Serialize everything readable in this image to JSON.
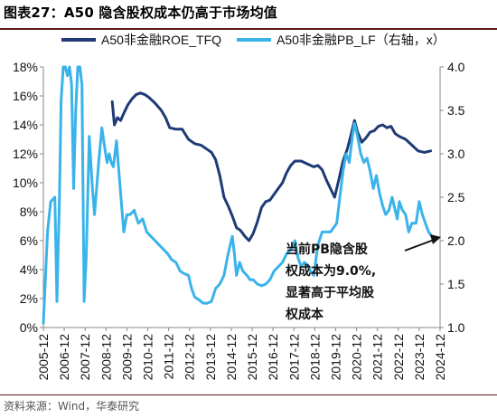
{
  "title": {
    "label": "图表27：",
    "text": "A50 隐含股权成本仍高于市场均值"
  },
  "source": "资料来源：Wind，华泰研究",
  "chart_data": {
    "type": "line",
    "x_ticks": [
      "2005-12",
      "2006-12",
      "2007-12",
      "2008-12",
      "2009-12",
      "2010-12",
      "2011-12",
      "2012-12",
      "2013-12",
      "2014-12",
      "2015-12",
      "2016-12",
      "2017-12",
      "2018-12",
      "2019-12",
      "2020-12",
      "2021-12",
      "2022-12",
      "2023-12",
      "2024-12"
    ],
    "y_left": {
      "ticks": [
        "0%",
        "2%",
        "4%",
        "6%",
        "8%",
        "10%",
        "12%",
        "14%",
        "16%",
        "18%"
      ],
      "lim": [
        0,
        18
      ]
    },
    "y_right": {
      "ticks": [
        "1.0",
        "1.5",
        "2.0",
        "2.5",
        "3.0",
        "3.5",
        "4.0"
      ],
      "lim": [
        1.0,
        4.0
      ]
    },
    "legend": {
      "placement": "top"
    },
    "series": [
      {
        "name": "A50非金融ROE_TFQ",
        "axis": "left",
        "color": "#1f3a75",
        "points": [
          [
            2009.25,
            15.6
          ],
          [
            2009.35,
            14.0
          ],
          [
            2009.5,
            14.5
          ],
          [
            2009.65,
            14.3
          ],
          [
            2009.8,
            14.8
          ],
          [
            2010.0,
            15.4
          ],
          [
            2010.2,
            15.8
          ],
          [
            2010.4,
            16.1
          ],
          [
            2010.6,
            16.2
          ],
          [
            2010.8,
            16.1
          ],
          [
            2011.0,
            15.9
          ],
          [
            2011.3,
            15.5
          ],
          [
            2011.6,
            15.0
          ],
          [
            2011.8,
            14.5
          ],
          [
            2012.0,
            13.8
          ],
          [
            2012.3,
            13.7
          ],
          [
            2012.6,
            13.7
          ],
          [
            2012.9,
            13.0
          ],
          [
            2013.2,
            12.7
          ],
          [
            2013.5,
            12.6
          ],
          [
            2013.8,
            12.3
          ],
          [
            2014.0,
            12.1
          ],
          [
            2014.2,
            11.6
          ],
          [
            2014.4,
            10.5
          ],
          [
            2014.6,
            9.0
          ],
          [
            2014.8,
            8.4
          ],
          [
            2015.0,
            7.7
          ],
          [
            2015.2,
            6.9
          ],
          [
            2015.4,
            6.7
          ],
          [
            2015.6,
            6.3
          ],
          [
            2015.8,
            6.0
          ],
          [
            2016.0,
            6.5
          ],
          [
            2016.2,
            7.3
          ],
          [
            2016.4,
            8.3
          ],
          [
            2016.6,
            8.7
          ],
          [
            2016.8,
            8.8
          ],
          [
            2017.0,
            9.2
          ],
          [
            2017.2,
            9.6
          ],
          [
            2017.4,
            10.0
          ],
          [
            2017.6,
            10.7
          ],
          [
            2017.8,
            11.2
          ],
          [
            2018.0,
            11.5
          ],
          [
            2018.3,
            11.5
          ],
          [
            2018.6,
            11.3
          ],
          [
            2018.9,
            11.1
          ],
          [
            2019.1,
            11.2
          ],
          [
            2019.3,
            10.9
          ],
          [
            2019.5,
            10.2
          ],
          [
            2019.7,
            9.6
          ],
          [
            2019.9,
            9.0
          ],
          [
            2020.1,
            10.2
          ],
          [
            2020.3,
            11.5
          ],
          [
            2020.5,
            12.3
          ],
          [
            2020.7,
            13.4
          ],
          [
            2020.85,
            14.3
          ],
          [
            2021.0,
            13.5
          ],
          [
            2021.2,
            12.8
          ],
          [
            2021.4,
            13.1
          ],
          [
            2021.6,
            13.5
          ],
          [
            2021.8,
            13.6
          ],
          [
            2022.0,
            13.9
          ],
          [
            2022.2,
            14.0
          ],
          [
            2022.4,
            13.8
          ],
          [
            2022.6,
            13.9
          ],
          [
            2022.8,
            13.4
          ],
          [
            2023.0,
            13.2
          ],
          [
            2023.3,
            13.0
          ],
          [
            2023.6,
            12.6
          ],
          [
            2023.9,
            12.2
          ],
          [
            2024.2,
            12.1
          ],
          [
            2024.5,
            12.2
          ]
        ]
      },
      {
        "name": "A50非金融PB_LF（右轴，x）",
        "axis": "right",
        "color": "#3ab3ea",
        "points": [
          [
            2005.95,
            1.05
          ],
          [
            2006.15,
            2.1
          ],
          [
            2006.3,
            2.45
          ],
          [
            2006.5,
            2.5
          ],
          [
            2006.6,
            1.3
          ],
          [
            2006.72,
            2.5
          ],
          [
            2006.8,
            3.6
          ],
          [
            2006.9,
            4.0
          ],
          [
            2007.0,
            4.0
          ],
          [
            2007.1,
            3.9
          ],
          [
            2007.2,
            4.0
          ],
          [
            2007.3,
            3.8
          ],
          [
            2007.4,
            2.6
          ],
          [
            2007.5,
            3.5
          ],
          [
            2007.6,
            4.0
          ],
          [
            2007.7,
            4.0
          ],
          [
            2007.8,
            3.8
          ],
          [
            2007.9,
            1.3
          ],
          [
            2008.0,
            1.8
          ],
          [
            2008.15,
            3.2
          ],
          [
            2008.3,
            2.6
          ],
          [
            2008.4,
            2.3
          ],
          [
            2008.5,
            2.6
          ],
          [
            2008.6,
            2.9
          ],
          [
            2008.75,
            3.3
          ],
          [
            2008.9,
            3.05
          ],
          [
            2009.0,
            2.9
          ],
          [
            2009.1,
            3.0
          ],
          [
            2009.2,
            2.9
          ],
          [
            2009.3,
            2.85
          ],
          [
            2009.45,
            3.15
          ],
          [
            2009.6,
            2.7
          ],
          [
            2009.7,
            2.4
          ],
          [
            2009.8,
            2.1
          ],
          [
            2009.95,
            2.3
          ],
          [
            2010.1,
            2.3
          ],
          [
            2010.3,
            2.35
          ],
          [
            2010.5,
            2.2
          ],
          [
            2010.7,
            2.25
          ],
          [
            2010.9,
            2.1
          ],
          [
            2011.1,
            2.05
          ],
          [
            2011.3,
            2.0
          ],
          [
            2011.5,
            1.95
          ],
          [
            2011.7,
            1.9
          ],
          [
            2011.9,
            1.85
          ],
          [
            2012.1,
            1.78
          ],
          [
            2012.3,
            1.75
          ],
          [
            2012.5,
            1.65
          ],
          [
            2012.7,
            1.62
          ],
          [
            2012.9,
            1.6
          ],
          [
            2013.05,
            1.45
          ],
          [
            2013.2,
            1.35
          ],
          [
            2013.4,
            1.32
          ],
          [
            2013.6,
            1.28
          ],
          [
            2013.8,
            1.28
          ],
          [
            2014.0,
            1.3
          ],
          [
            2014.2,
            1.45
          ],
          [
            2014.4,
            1.5
          ],
          [
            2014.6,
            1.6
          ],
          [
            2014.8,
            1.85
          ],
          [
            2015.0,
            2.05
          ],
          [
            2015.1,
            1.85
          ],
          [
            2015.2,
            1.6
          ],
          [
            2015.35,
            1.75
          ],
          [
            2015.5,
            1.65
          ],
          [
            2015.7,
            1.6
          ],
          [
            2015.85,
            1.55
          ],
          [
            2016.0,
            1.55
          ],
          [
            2016.2,
            1.5
          ],
          [
            2016.4,
            1.48
          ],
          [
            2016.6,
            1.5
          ],
          [
            2016.8,
            1.55
          ],
          [
            2017.0,
            1.65
          ],
          [
            2017.2,
            1.7
          ],
          [
            2017.4,
            1.75
          ],
          [
            2017.6,
            1.85
          ],
          [
            2017.8,
            1.9
          ],
          [
            2018.0,
            2.0
          ],
          [
            2018.15,
            1.8
          ],
          [
            2018.3,
            1.7
          ],
          [
            2018.45,
            1.75
          ],
          [
            2018.6,
            1.72
          ],
          [
            2018.75,
            1.65
          ],
          [
            2018.9,
            1.6
          ],
          [
            2019.1,
            1.95
          ],
          [
            2019.3,
            2.1
          ],
          [
            2019.5,
            2.1
          ],
          [
            2019.7,
            2.1
          ],
          [
            2019.85,
            2.15
          ],
          [
            2020.0,
            2.2
          ],
          [
            2020.15,
            2.5
          ],
          [
            2020.3,
            2.8
          ],
          [
            2020.45,
            3.0
          ],
          [
            2020.6,
            2.9
          ],
          [
            2020.75,
            3.2
          ],
          [
            2020.85,
            3.35
          ],
          [
            2021.0,
            3.2
          ],
          [
            2021.15,
            3.0
          ],
          [
            2021.3,
            2.9
          ],
          [
            2021.45,
            2.95
          ],
          [
            2021.6,
            2.8
          ],
          [
            2021.75,
            2.6
          ],
          [
            2021.9,
            2.75
          ],
          [
            2022.05,
            2.55
          ],
          [
            2022.2,
            2.4
          ],
          [
            2022.35,
            2.3
          ],
          [
            2022.5,
            2.35
          ],
          [
            2022.65,
            2.5
          ],
          [
            2022.8,
            2.35
          ],
          [
            2022.9,
            2.25
          ],
          [
            2023.0,
            2.45
          ],
          [
            2023.15,
            2.35
          ],
          [
            2023.3,
            2.3
          ],
          [
            2023.45,
            2.1
          ],
          [
            2023.6,
            2.2
          ],
          [
            2023.8,
            2.2
          ],
          [
            2023.95,
            2.45
          ],
          [
            2024.1,
            2.3
          ],
          [
            2024.25,
            2.2
          ],
          [
            2024.4,
            2.1
          ],
          [
            2024.55,
            2.05
          ]
        ]
      }
    ],
    "annotation": {
      "lines": [
        "当前PB隐含股",
        "权成本为9.0%,",
        "显著高于平均股",
        "权成本"
      ]
    }
  }
}
